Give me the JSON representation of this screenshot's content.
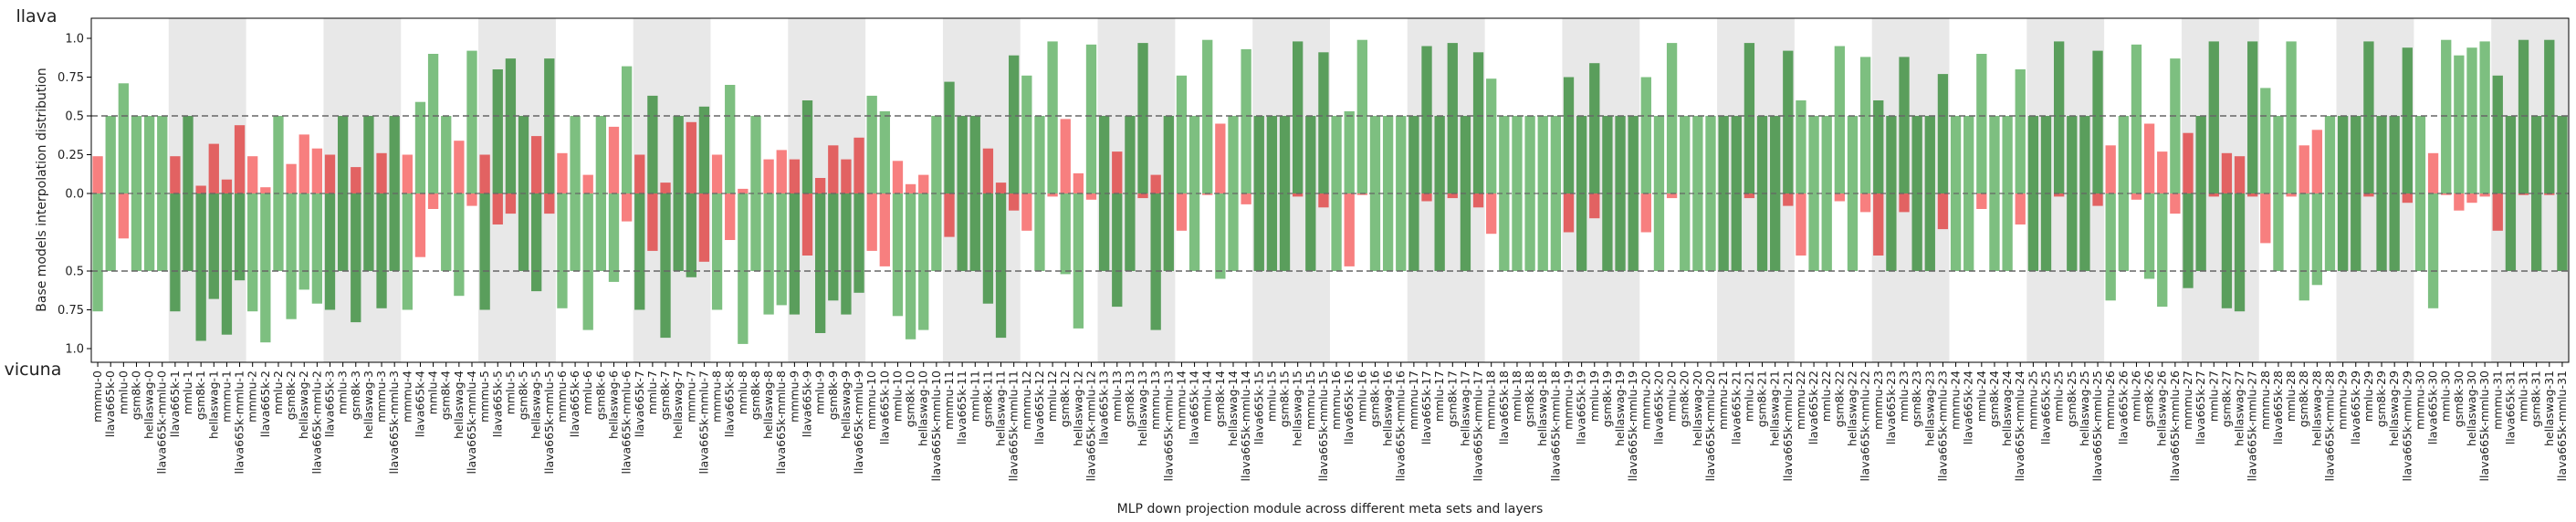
{
  "chart_data": {
    "type": "bar",
    "xlabel": "MLP down projection module across different meta sets and layers",
    "ylabel": "Base models interpolation distribution",
    "top_label": "llava",
    "bottom_label": "vicuna",
    "ytick_labels_top": [
      "1.0",
      "0.75",
      "0.5",
      "0.25",
      "0.0"
    ],
    "ytick_labels_bottom": [
      "0.5",
      "0.75",
      "1.0"
    ],
    "ylim": [
      -1.1,
      1.1
    ],
    "reference_lines": [
      0.5,
      -0.5
    ],
    "grid": false,
    "colors": {
      "green_light": "#7dbf80",
      "green_dark": "#5a9e5c",
      "red_light": "#f77f7f",
      "red_dark": "#e26262",
      "band": "#e8e8e8",
      "refline": "#666666"
    },
    "meta_sets": [
      "mmmu",
      "llava665k",
      "gsm8k",
      "hellaswag",
      "llava665k-mmlu"
    ],
    "categories": [
      "mmmu-0",
      "llava665k-0",
      "mmlu-0",
      "gsm8k-0",
      "hellaswag-0",
      "llava665k-mmlu-0",
      "llava665k-1",
      "mmlu-1",
      "gsm8k-1",
      "hellaswag-1",
      "mmmu-1",
      "llava665k-mmlu-1",
      "mmmu-2",
      "llava665k-2",
      "mmlu-2",
      "gsm8k-2",
      "hellaswag-2",
      "llava665k-mmlu-2",
      "llava665k-3",
      "mmlu-3",
      "gsm8k-3",
      "hellaswag-3",
      "mmmu-3",
      "llava665k-mmlu-3",
      "mmmu-4",
      "llava665k-4",
      "mmlu-4",
      "gsm8k-4",
      "hellaswag-4",
      "llava665k-mmlu-4",
      "mmmu-5",
      "llava665k-5",
      "mmlu-5",
      "gsm8k-5",
      "hellaswag-5",
      "llava665k-mmlu-5",
      "mmmu-6",
      "llava665k-6",
      "mmlu-6",
      "gsm8k-6",
      "hellaswag-6",
      "llava665k-mmlu-6",
      "llava665k-7",
      "mmlu-7",
      "gsm8k-7",
      "hellaswag-7",
      "mmmu-7",
      "llava665k-mmlu-7",
      "mmmu-8",
      "llava665k-8",
      "mmlu-8",
      "gsm8k-8",
      "hellaswag-8",
      "llava665k-mmlu-8",
      "mmmu-9",
      "llava665k-9",
      "mmlu-9",
      "gsm8k-9",
      "hellaswag-9",
      "llava665k-mmlu-9",
      "mmmu-10",
      "llava665k-10",
      "mmlu-10",
      "gsm8k-10",
      "hellaswag-10",
      "llava665k-mmlu-10",
      "mmmu-11",
      "llava665k-11",
      "mmlu-11",
      "gsm8k-11",
      "hellaswag-11",
      "llava665k-mmlu-11",
      "mmmu-12",
      "llava665k-12",
      "mmlu-12",
      "gsm8k-12",
      "hellaswag-12",
      "llava665k-mmlu-12",
      "llava665k-13",
      "mmlu-13",
      "gsm8k-13",
      "hellaswag-13",
      "mmmu-13",
      "llava665k-mmlu-13",
      "mmmu-14",
      "llava665k-14",
      "mmlu-14",
      "gsm8k-14",
      "hellaswag-14",
      "llava665k-mmlu-14",
      "llava665k-15",
      "mmlu-15",
      "gsm8k-15",
      "hellaswag-15",
      "mmmu-15",
      "llava665k-mmlu-15",
      "mmmu-16",
      "llava665k-16",
      "mmlu-16",
      "gsm8k-16",
      "hellaswag-16",
      "llava665k-mmlu-16",
      "mmmu-17",
      "llava665k-17",
      "mmlu-17",
      "gsm8k-17",
      "hellaswag-17",
      "llava665k-mmlu-17",
      "mmmu-18",
      "llava665k-18",
      "mmlu-18",
      "gsm8k-18",
      "hellaswag-18",
      "llava665k-mmlu-18",
      "mmmu-19",
      "llava665k-19",
      "mmlu-19",
      "gsm8k-19",
      "hellaswag-19",
      "llava665k-mmlu-19",
      "mmmu-20",
      "llava665k-20",
      "mmlu-20",
      "gsm8k-20",
      "hellaswag-20",
      "llava665k-mmlu-20",
      "mmmu-21",
      "llava665k-21",
      "mmlu-21",
      "gsm8k-21",
      "hellaswag-21",
      "llava665k-mmlu-21",
      "mmmu-22",
      "llava665k-22",
      "mmlu-22",
      "gsm8k-22",
      "hellaswag-22",
      "llava665k-mmlu-22",
      "mmmu-23",
      "llava665k-23",
      "mmlu-23",
      "gsm8k-23",
      "hellaswag-23",
      "llava665k-mmlu-23",
      "mmmu-24",
      "llava665k-24",
      "mmlu-24",
      "gsm8k-24",
      "hellaswag-24",
      "llava665k-mmlu-24",
      "mmmu-25",
      "llava665k-25",
      "mmlu-25",
      "gsm8k-25",
      "hellaswag-25",
      "llava665k-mmlu-25",
      "mmmu-26",
      "llava665k-26",
      "mmlu-26",
      "gsm8k-26",
      "hellaswag-26",
      "llava665k-mmlu-26",
      "mmmu-27",
      "llava665k-27",
      "mmlu-27",
      "gsm8k-27",
      "hellaswag-27",
      "llava665k-mmlu-27",
      "mmmu-28",
      "llava665k-28",
      "mmlu-28",
      "gsm8k-28",
      "hellaswag-28",
      "llava665k-mmlu-28",
      "mmmu-29",
      "llava665k-29",
      "mmlu-29",
      "gsm8k-29",
      "hellaswag-29",
      "llava665k-mmlu-29",
      "mmmu-30",
      "llava665k-30",
      "mmlu-30",
      "gsm8k-30",
      "hellaswag-30",
      "llava665k-mmlu-30",
      "mmmu-31",
      "llava665k-31",
      "mmlu-31",
      "gsm8k-31",
      "hellaswag-31",
      "llava665k-mmlu-31"
    ],
    "series": [
      {
        "llava_values": [
          0.24,
          0.5,
          0.71,
          0.5,
          0.5,
          0.5,
          0.24,
          0.5,
          0.05,
          0.32,
          0.09,
          0.44,
          0.24,
          0.04,
          0.5,
          0.19,
          0.38,
          0.29,
          0.25,
          0.5,
          0.17,
          0.5,
          0.26,
          0.5,
          0.25,
          0.59,
          0.9,
          0.5,
          0.34,
          0.92,
          0.25,
          0.8,
          0.87,
          0.5,
          0.37,
          0.87,
          0.26,
          0.5,
          0.12,
          0.5,
          0.43,
          0.82,
          0.25,
          0.63,
          0.07,
          0.5,
          0.46,
          0.56,
          0.25,
          0.7,
          0.03,
          0.5,
          0.22,
          0.28,
          0.22,
          0.6,
          0.1,
          0.31,
          0.22,
          0.36,
          0.63,
          0.53,
          0.21,
          0.06,
          0.12,
          0.5,
          0.72,
          0.5,
          0.5,
          0.29,
          0.07,
          0.89,
          0.76,
          0.5,
          0.98,
          0.48,
          0.13,
          0.96,
          0.5,
          0.27,
          0.5,
          0.97,
          0.12,
          0.5,
          0.76,
          0.5,
          0.99,
          0.45,
          0.5,
          0.93,
          0.5,
          0.5,
          0.5,
          0.98,
          0.5,
          0.91,
          0.5,
          0.53,
          0.99,
          0.5,
          0.5,
          0.5,
          0.5,
          0.95,
          0.5,
          0.97,
          0.5,
          0.91,
          0.74,
          0.5,
          0.5,
          0.5,
          0.5,
          0.5,
          0.75,
          0.5,
          0.84,
          0.5,
          0.5,
          0.5,
          0.75,
          0.5,
          0.97,
          0.5,
          0.5,
          0.5,
          0.5,
          0.5,
          0.97,
          0.5,
          0.5,
          0.92,
          0.6,
          0.5,
          0.5,
          0.95,
          0.5,
          0.88,
          0.6,
          0.5,
          0.88,
          0.5,
          0.5,
          0.77,
          0.5,
          0.5,
          0.9,
          0.5,
          0.5,
          0.8,
          0.5,
          0.5,
          0.98,
          0.5,
          0.5,
          0.92,
          0.31,
          0.5,
          0.96,
          0.45,
          0.27,
          0.87,
          0.39,
          0.5,
          0.98,
          0.26,
          0.24,
          0.98,
          0.68,
          0.5,
          0.98,
          0.31,
          0.41,
          0.5,
          0.5,
          0.5,
          0.98,
          0.5,
          0.5,
          0.94,
          0.5,
          0.26,
          0.99,
          0.89,
          0.94,
          0.98,
          0.76,
          0.5,
          0.99,
          0.5,
          0.99,
          0.5
        ],
        "vicuna_values": [
          0.76,
          0.5,
          0.29,
          0.5,
          0.5,
          0.5,
          0.76,
          0.5,
          0.95,
          0.68,
          0.91,
          0.56,
          0.76,
          0.96,
          0.5,
          0.81,
          0.62,
          0.71,
          0.75,
          0.5,
          0.83,
          0.5,
          0.74,
          0.5,
          0.75,
          0.41,
          0.1,
          0.5,
          0.66,
          0.08,
          0.75,
          0.2,
          0.13,
          0.5,
          0.63,
          0.13,
          0.74,
          0.5,
          0.88,
          0.5,
          0.57,
          0.18,
          0.75,
          0.37,
          0.93,
          0.5,
          0.54,
          0.44,
          0.75,
          0.3,
          0.97,
          0.5,
          0.78,
          0.72,
          0.78,
          0.4,
          0.9,
          0.69,
          0.78,
          0.64,
          0.37,
          0.47,
          0.79,
          0.94,
          0.88,
          0.5,
          0.28,
          0.5,
          0.5,
          0.71,
          0.93,
          0.11,
          0.24,
          0.5,
          0.02,
          0.52,
          0.87,
          0.04,
          0.5,
          0.73,
          0.5,
          0.03,
          0.88,
          0.5,
          0.24,
          0.5,
          0.01,
          0.55,
          0.5,
          0.07,
          0.5,
          0.5,
          0.5,
          0.02,
          0.5,
          0.09,
          0.5,
          0.47,
          0.01,
          0.5,
          0.5,
          0.5,
          0.5,
          0.05,
          0.5,
          0.03,
          0.5,
          0.09,
          0.26,
          0.5,
          0.5,
          0.5,
          0.5,
          0.5,
          0.25,
          0.5,
          0.16,
          0.5,
          0.5,
          0.5,
          0.25,
          0.5,
          0.03,
          0.5,
          0.5,
          0.5,
          0.5,
          0.5,
          0.03,
          0.5,
          0.5,
          0.08,
          0.4,
          0.5,
          0.5,
          0.05,
          0.5,
          0.12,
          0.4,
          0.5,
          0.12,
          0.5,
          0.5,
          0.23,
          0.5,
          0.5,
          0.1,
          0.5,
          0.5,
          0.2,
          0.5,
          0.5,
          0.02,
          0.5,
          0.5,
          0.08,
          0.69,
          0.5,
          0.04,
          0.55,
          0.73,
          0.13,
          0.61,
          0.5,
          0.02,
          0.74,
          0.76,
          0.02,
          0.32,
          0.5,
          0.02,
          0.69,
          0.59,
          0.5,
          0.5,
          0.5,
          0.02,
          0.5,
          0.5,
          0.06,
          0.5,
          0.74,
          0.01,
          0.11,
          0.06,
          0.02,
          0.24,
          0.5,
          0.01,
          0.5,
          0.01,
          0.5
        ]
      }
    ]
  }
}
